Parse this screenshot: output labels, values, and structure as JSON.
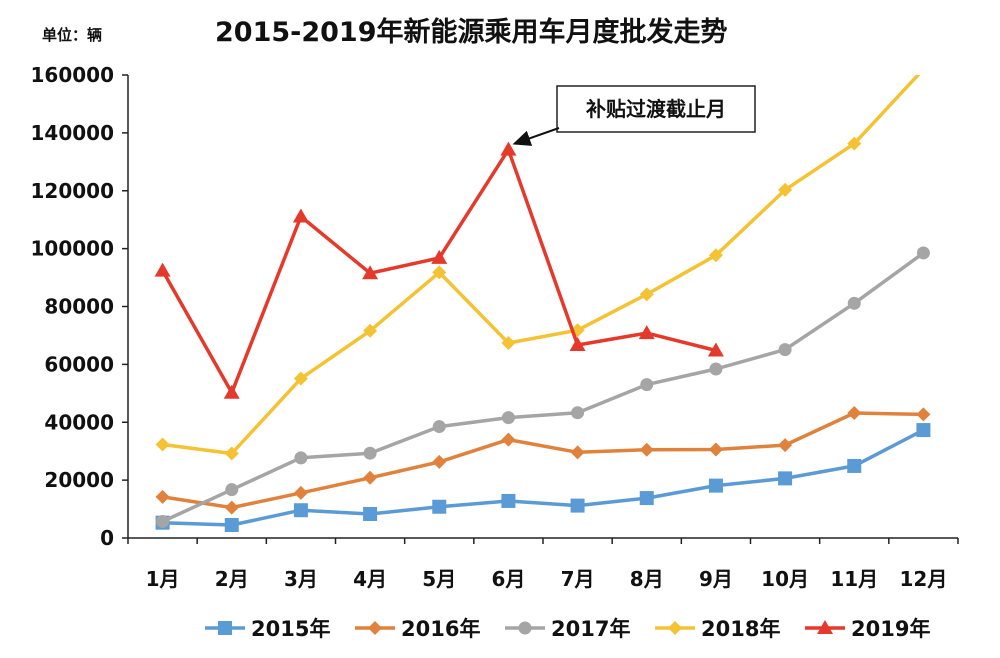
{
  "unit_label": "单位：辆",
  "colors": {
    "2015": "#5b9bd5",
    "2016": "#e0823c",
    "2017": "#a5a5a5",
    "2018": "#f5c233",
    "2019": "#e53a2b",
    "axis": "#222222",
    "text": "#111111"
  },
  "chart_data": {
    "type": "line",
    "title": "2015-2019年新能源乘用车月度批发走势",
    "xlabel": "",
    "ylabel": "单位：辆",
    "ylim": [
      0,
      160000
    ],
    "yticks": [
      0,
      20000,
      40000,
      60000,
      80000,
      100000,
      120000,
      140000,
      160000
    ],
    "ytick_labels": [
      "0",
      "20000",
      "40000",
      "60000",
      "80000",
      "100000",
      "120000",
      "140000",
      "160000"
    ],
    "categories": [
      "1月",
      "2月",
      "3月",
      "4月",
      "5月",
      "6月",
      "7月",
      "8月",
      "9月",
      "10月",
      "11月",
      "12月"
    ],
    "grid": false,
    "legend_position": "bottom",
    "series": [
      {
        "name": "2015年",
        "key": "2015",
        "marker": "square",
        "values": [
          5300,
          4500,
          9600,
          8300,
          10800,
          12800,
          11200,
          13800,
          18100,
          20600,
          24900,
          37300
        ]
      },
      {
        "name": "2016年",
        "key": "2016",
        "marker": "diamond",
        "values": [
          14200,
          10500,
          15600,
          20800,
          26300,
          34000,
          29600,
          30500,
          30600,
          32100,
          43200,
          42700
        ]
      },
      {
        "name": "2017年",
        "key": "2017",
        "marker": "circle",
        "values": [
          5700,
          16700,
          27700,
          29300,
          38500,
          41600,
          43300,
          53000,
          58400,
          65100,
          81100,
          98500
        ]
      },
      {
        "name": "2018年",
        "key": "2018",
        "marker": "diamond",
        "values": [
          32300,
          29200,
          55100,
          71600,
          91800,
          67400,
          71800,
          84200,
          97700,
          120300,
          136300,
          162000
        ]
      },
      {
        "name": "2019年",
        "key": "2019",
        "marker": "triangle",
        "values": [
          92400,
          50200,
          111100,
          91500,
          96800,
          134200,
          66700,
          70800,
          64800,
          null,
          null,
          null
        ]
      }
    ],
    "annotations": [
      {
        "text": "补贴过渡截止月",
        "series": "2019",
        "category": "6月",
        "value": 134200
      }
    ]
  }
}
